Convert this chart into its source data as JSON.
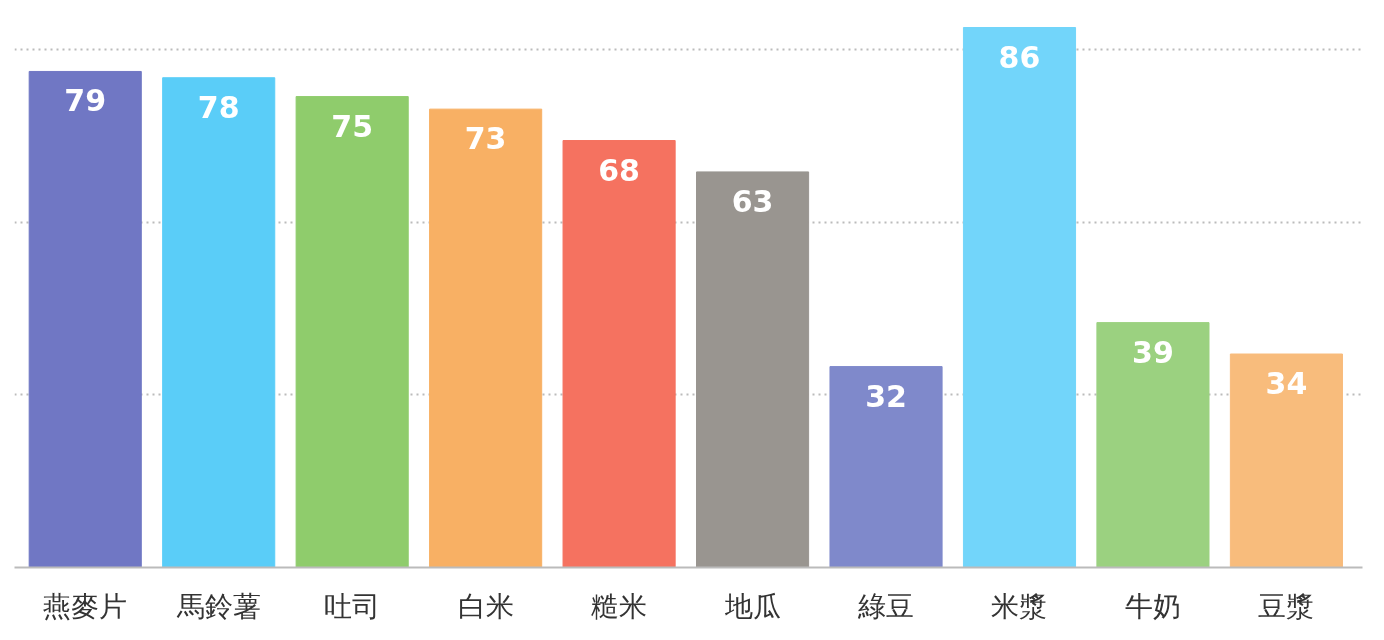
{
  "chart_data": {
    "type": "bar",
    "categories": [
      "燕麥片",
      "馬鈴薯",
      "吐司",
      "白米",
      "糙米",
      "地瓜",
      "綠豆",
      "米漿",
      "牛奶",
      "豆漿"
    ],
    "values": [
      79,
      78,
      75,
      73,
      68,
      63,
      32,
      86,
      39,
      34
    ],
    "colors": [
      "#7077c4",
      "#5acdf8",
      "#8fcc6c",
      "#f8b064",
      "#f57260",
      "#999590",
      "#7f89cb",
      "#72d5fa",
      "#9bd180",
      "#f8bc7c"
    ],
    "yticks": [
      {
        "value": 27.5,
        "label": null
      },
      {
        "value": 55,
        "label": null
      },
      {
        "value": 82.5,
        "label": null
      }
    ],
    "tick_labels": "x",
    "grid": "y",
    "data_labels": true
  }
}
